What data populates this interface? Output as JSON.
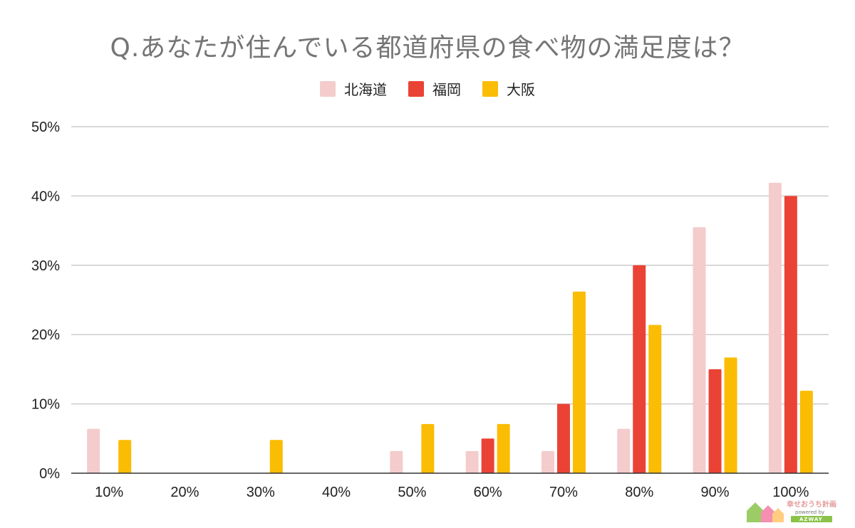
{
  "chart_data": {
    "type": "bar",
    "title": "Q.あなたが住んでいる都道府県の食べ物の満足度は？",
    "categories": [
      "10%",
      "20%",
      "30%",
      "40%",
      "50%",
      "60%",
      "70%",
      "80%",
      "90%",
      "100%"
    ],
    "series": [
      {
        "name": "北海道",
        "color": "#f4cccc",
        "values": [
          6.4,
          0,
          0,
          0,
          3.2,
          3.2,
          3.2,
          6.4,
          35.5,
          41.9
        ]
      },
      {
        "name": "福岡",
        "color": "#ea4335",
        "values": [
          0,
          0,
          0,
          0,
          0,
          5,
          10,
          30,
          15,
          40
        ]
      },
      {
        "name": "大阪",
        "color": "#fbbc04",
        "values": [
          4.8,
          0,
          4.8,
          0,
          7.1,
          7.1,
          26.2,
          21.4,
          16.7,
          11.9
        ]
      }
    ],
    "y_ticks": [
      "0%",
      "10%",
      "20%",
      "30%",
      "40%",
      "50%"
    ],
    "ylim": [
      0,
      50
    ],
    "grid": true,
    "legend_position": "top-center"
  },
  "watermark": {
    "line1": "幸せおうち計画",
    "line2": "powered by",
    "line3": "AZWAY"
  }
}
